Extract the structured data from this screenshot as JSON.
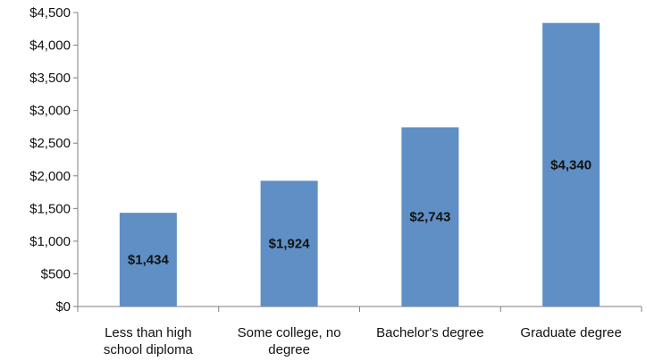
{
  "chart_data": {
    "type": "bar",
    "title": "",
    "xlabel": "",
    "ylabel": "",
    "categories": [
      [
        "Less than high",
        "school diploma"
      ],
      [
        "Some college, no",
        "degree"
      ],
      [
        "Bachelor's degree"
      ],
      [
        "Graduate degree"
      ]
    ],
    "values": [
      1434,
      1924,
      2743,
      4340
    ],
    "data_labels": [
      "$1,434",
      "$1,924",
      "$2,743",
      "$4,340"
    ],
    "ylim": [
      0,
      4500
    ],
    "y_ticks": [
      0,
      500,
      1000,
      1500,
      2000,
      2500,
      3000,
      3500,
      4000,
      4500
    ],
    "y_tick_labels": [
      "$0",
      "$500",
      "$1,000",
      "$1,500",
      "$2,000",
      "$2,500",
      "$3,000",
      "$3,500",
      "$4,000",
      "$4,500"
    ],
    "grid": false,
    "legend": "none",
    "colors": {
      "bar": "#5f8fc4",
      "axis": "#7f7f7f",
      "text": "#111111"
    }
  }
}
